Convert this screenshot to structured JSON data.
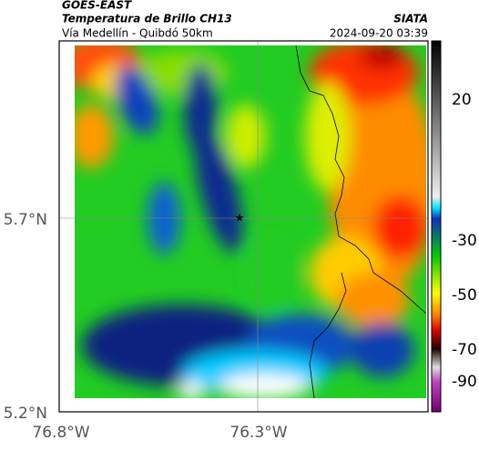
{
  "header": {
    "satellite": "GOES-EAST",
    "title": "Temperatura de Brillo CH13",
    "subtitle": "Vía Medellín - Quibdó 50km",
    "source": "SIATA",
    "datetime": "2024-09-20 03:39"
  },
  "axes": {
    "y_labels": [
      "5.7°N",
      "5.2°N"
    ],
    "x_labels": [
      "76.8°W",
      "76.3°W"
    ]
  },
  "colorbar": {
    "tick_labels": [
      "20",
      "-30",
      "-50",
      "-70",
      "-90"
    ]
  }
}
